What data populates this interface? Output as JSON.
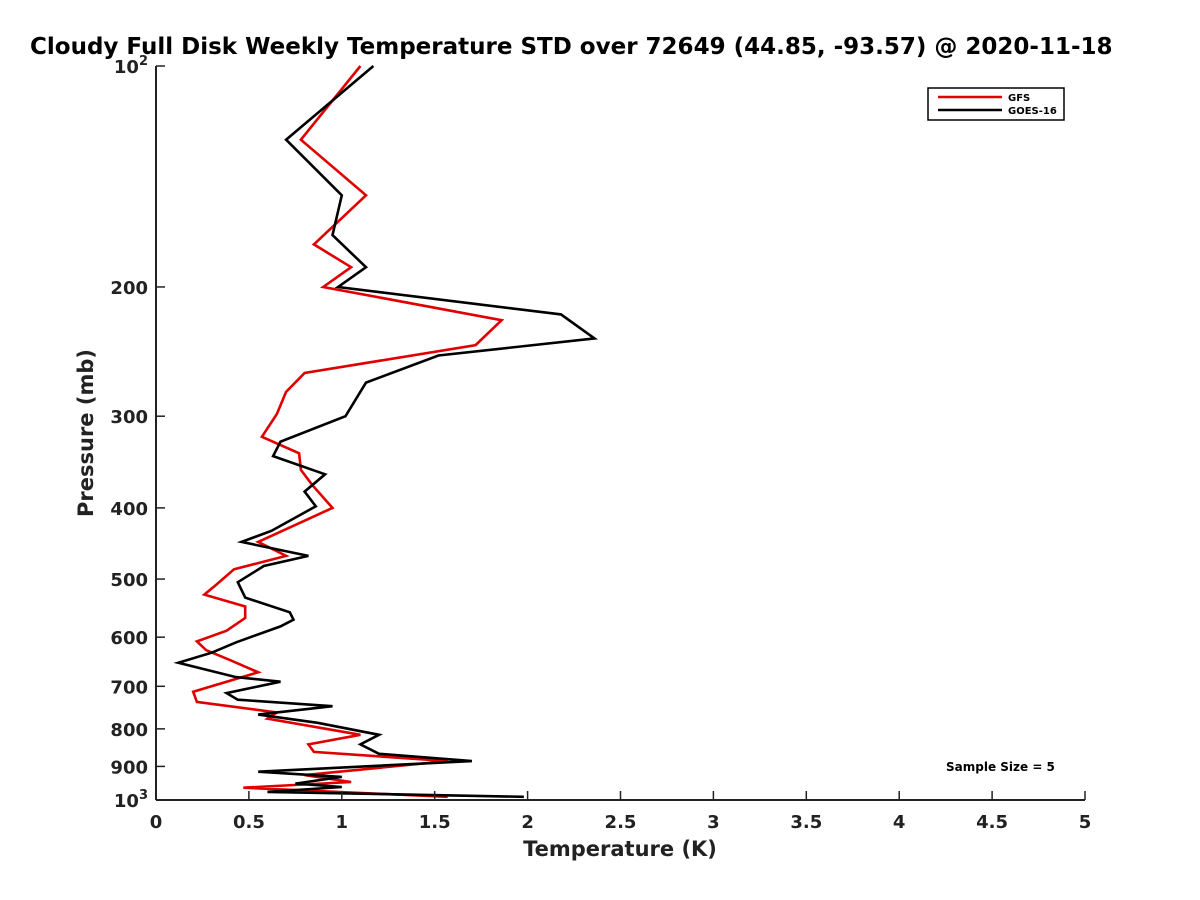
{
  "chart_data": {
    "type": "line",
    "title": "Cloudy Full Disk Weekly Temperature STD over 72649 (44.85, -93.57) @ 2020-11-18",
    "xlabel": "Temperature (K)",
    "ylabel": "Pressure (mb)",
    "xlim": [
      0,
      5
    ],
    "ylim": [
      1000,
      100
    ],
    "yscale": "log",
    "x_ticks": [
      "0",
      "0.5",
      "1",
      "1.5",
      "2",
      "2.5",
      "3",
      "3.5",
      "4",
      "4.5",
      "5"
    ],
    "x_tick_values": [
      0,
      0.5,
      1,
      1.5,
      2,
      2.5,
      3,
      3.5,
      4,
      4.5,
      5
    ],
    "y_ticks": [
      {
        "value": 100,
        "base": "10",
        "exp": "2"
      },
      {
        "value": 200,
        "label": "200"
      },
      {
        "value": 300,
        "label": "300"
      },
      {
        "value": 400,
        "label": "400"
      },
      {
        "value": 500,
        "label": "500"
      },
      {
        "value": 600,
        "label": "600"
      },
      {
        "value": 700,
        "label": "700"
      },
      {
        "value": 800,
        "label": "800"
      },
      {
        "value": 900,
        "label": "900"
      },
      {
        "value": 1000,
        "base": "10",
        "exp": "3"
      }
    ],
    "grid": false,
    "legend_position": "top-right",
    "annotation": "Sample Size = 5",
    "series": [
      {
        "name": "GFS",
        "color": "#e00000",
        "points": [
          [
            1.1,
            100
          ],
          [
            0.78,
            126
          ],
          [
            1.13,
            150
          ],
          [
            0.85,
            175
          ],
          [
            1.05,
            188
          ],
          [
            0.9,
            200
          ],
          [
            1.86,
            222
          ],
          [
            1.72,
            240
          ],
          [
            0.8,
            262
          ],
          [
            0.7,
            278
          ],
          [
            0.65,
            298
          ],
          [
            0.57,
            320
          ],
          [
            0.77,
            337
          ],
          [
            0.78,
            355
          ],
          [
            0.84,
            372
          ],
          [
            0.95,
            400
          ],
          [
            0.55,
            445
          ],
          [
            0.7,
            465
          ],
          [
            0.42,
            485
          ],
          [
            0.32,
            510
          ],
          [
            0.26,
            525
          ],
          [
            0.48,
            545
          ],
          [
            0.48,
            565
          ],
          [
            0.38,
            588
          ],
          [
            0.22,
            608
          ],
          [
            0.27,
            625
          ],
          [
            0.4,
            645
          ],
          [
            0.55,
            670
          ],
          [
            0.2,
            712
          ],
          [
            0.22,
            735
          ],
          [
            0.65,
            760
          ],
          [
            0.6,
            775
          ],
          [
            1.1,
            815
          ],
          [
            0.82,
            840
          ],
          [
            0.85,
            860
          ],
          [
            1.57,
            885
          ],
          [
            0.8,
            925
          ],
          [
            1.05,
            945
          ],
          [
            0.47,
            962
          ],
          [
            1.57,
            990
          ]
        ]
      },
      {
        "name": "GOES-16",
        "color": "#000000",
        "points": [
          [
            1.17,
            100
          ],
          [
            0.7,
            126
          ],
          [
            1.0,
            150
          ],
          [
            0.95,
            170
          ],
          [
            1.13,
            188
          ],
          [
            0.98,
            200
          ],
          [
            2.18,
            218
          ],
          [
            2.36,
            235
          ],
          [
            1.52,
            248
          ],
          [
            1.13,
            270
          ],
          [
            1.02,
            300
          ],
          [
            0.67,
            325
          ],
          [
            0.63,
            340
          ],
          [
            0.91,
            360
          ],
          [
            0.8,
            380
          ],
          [
            0.86,
            398
          ],
          [
            0.62,
            430
          ],
          [
            0.46,
            445
          ],
          [
            0.82,
            465
          ],
          [
            0.58,
            480
          ],
          [
            0.44,
            505
          ],
          [
            0.48,
            530
          ],
          [
            0.72,
            555
          ],
          [
            0.74,
            568
          ],
          [
            0.67,
            580
          ],
          [
            0.43,
            610
          ],
          [
            0.3,
            630
          ],
          [
            0.12,
            650
          ],
          [
            0.43,
            680
          ],
          [
            0.67,
            690
          ],
          [
            0.38,
            715
          ],
          [
            0.44,
            730
          ],
          [
            0.95,
            745
          ],
          [
            0.55,
            765
          ],
          [
            0.87,
            785
          ],
          [
            1.2,
            815
          ],
          [
            1.1,
            840
          ],
          [
            1.2,
            865
          ],
          [
            1.7,
            885
          ],
          [
            0.55,
            915
          ],
          [
            1.0,
            930
          ],
          [
            0.75,
            950
          ],
          [
            1.0,
            960
          ],
          [
            0.6,
            975
          ],
          [
            1.98,
            990
          ]
        ]
      }
    ]
  }
}
